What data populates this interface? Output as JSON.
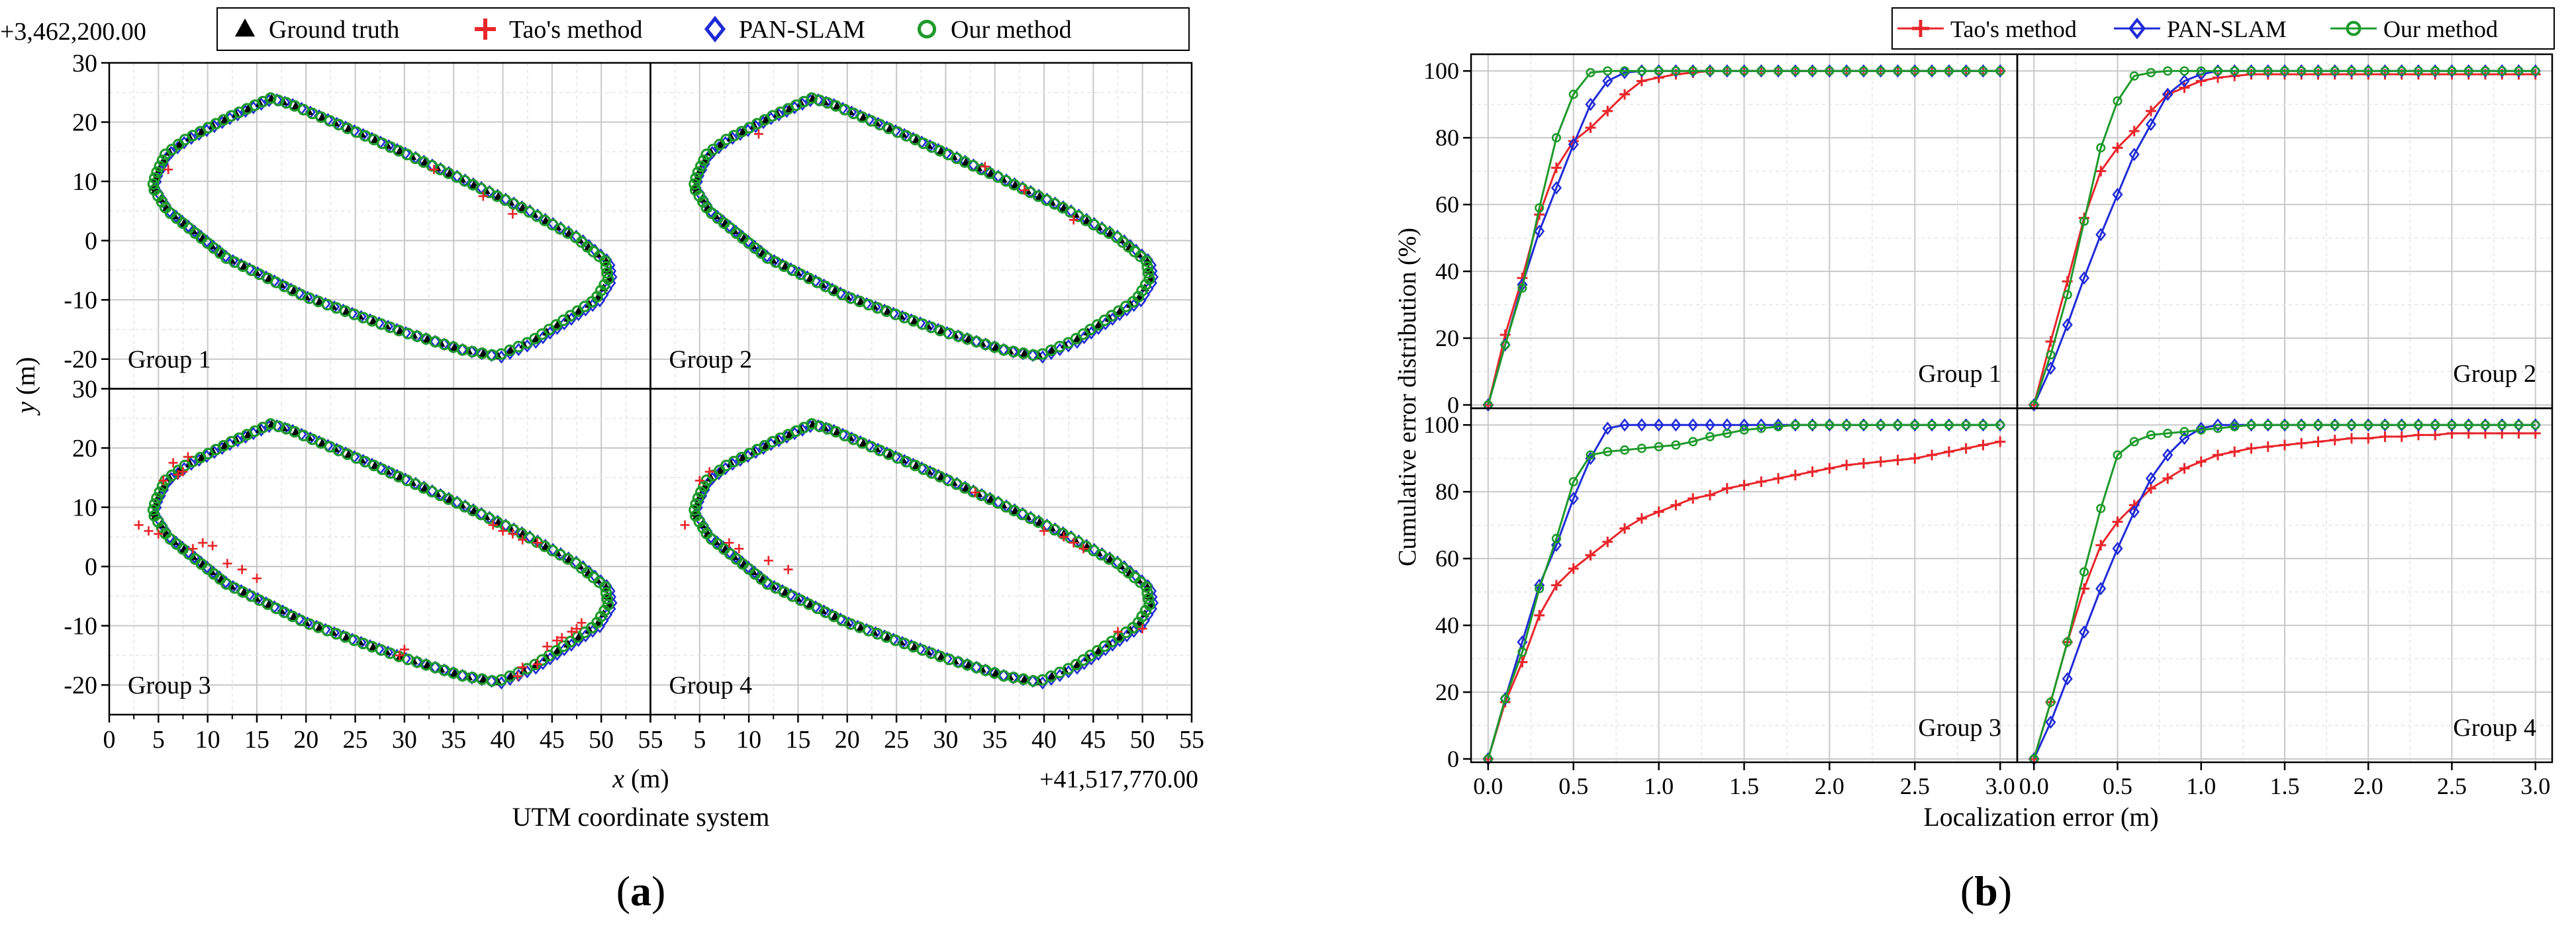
{
  "colors": {
    "ground_truth": "#000000",
    "tao": "#e8262b",
    "pan": "#1f2bd6",
    "ours": "#1e9a2b"
  },
  "panel_a": {
    "caption": "(a)",
    "y_offset_label": "+3,462,200.00",
    "x_offset_label": "+41,517,770.00",
    "xlabel_var": "x",
    "xlabel_unit": " (m)",
    "ylabel_var": "y",
    "ylabel_unit": " (m)",
    "subtitle": "UTM coordinate system",
    "legend": [
      {
        "name": "Ground truth",
        "marker": "triangle-filled",
        "color_key": "ground_truth"
      },
      {
        "name": "Tao's method",
        "marker": "plus",
        "color_key": "tao"
      },
      {
        "name": "PAN-SLAM",
        "marker": "diamond-open",
        "color_key": "pan"
      },
      {
        "name": "Our method",
        "marker": "circle-open",
        "color_key": "ours"
      }
    ]
  },
  "panel_b": {
    "caption": "(b)",
    "xlabel": "Localization error (m)",
    "ylabel": "Cumulative error distribution (%)",
    "legend": [
      {
        "name": "Tao's method",
        "marker": "plus",
        "color_key": "tao"
      },
      {
        "name": "PAN-SLAM",
        "marker": "diamond-open",
        "color_key": "pan"
      },
      {
        "name": "Our method",
        "marker": "circle-open",
        "color_key": "ours"
      }
    ]
  },
  "chart_data": [
    {
      "type": "scatter",
      "panel": "a",
      "layout": "2x2 small multiples",
      "xlim": [
        0,
        55
      ],
      "ylim": [
        -25,
        30
      ],
      "x_ticks": [
        0,
        5,
        10,
        15,
        20,
        25,
        30,
        35,
        40,
        45,
        50,
        55
      ],
      "y_ticks": [
        -20,
        -10,
        0,
        10,
        20,
        30
      ],
      "grid": true,
      "legend_position": "top",
      "trajectory_ground_truth": {
        "x": [
          4.5,
          4.8,
          5.8,
          7.8,
          12.5,
          16.5,
          18.5,
          27.0,
          35.0,
          42.0,
          47.5,
          50.5,
          50.8,
          49.5,
          43.0,
          39.5,
          36.0,
          30.0,
          20.0,
          12.0,
          6.0,
          4.5
        ],
        "y": [
          9.0,
          11.0,
          14.5,
          17.0,
          21.0,
          24.0,
          23.0,
          17.0,
          11.0,
          5.5,
          0.5,
          -3.5,
          -6.5,
          -10.0,
          -17.0,
          -19.5,
          -18.5,
          -15.5,
          -9.5,
          -3.0,
          5.0,
          9.0
        ]
      },
      "groups": [
        {
          "label": "Group 1",
          "tao_outliers": {
            "x": [
              6.0,
              33.0,
              38.0,
              41.0
            ],
            "y": [
              12.0,
              12.0,
              7.5,
              4.5
            ]
          }
        },
        {
          "label": "Group 2",
          "tao_outliers": {
            "x": [
              11.0,
              34.0,
              38.0,
              43.0
            ],
            "y": [
              18.0,
              12.5,
              8.5,
              3.5
            ]
          }
        },
        {
          "label": "Group 3",
          "tao_outliers": {
            "x": [
              3.0,
              4.0,
              5.0,
              5.5,
              7.0,
              8.0,
              8.5,
              9.5,
              10.5,
              12.0,
              13.5,
              15.0,
              6.5,
              7.5,
              29.5,
              30.0,
              39.0,
              40.0,
              41.0,
              42.0,
              43.5,
              42.0,
              43.5,
              44.5,
              45.5,
              46.0,
              47.0,
              47.5,
              48.0,
              41.5
            ],
            "y": [
              7.0,
              6.0,
              5.5,
              14.5,
              15.5,
              18.5,
              3.0,
              4.0,
              3.5,
              0.5,
              -0.5,
              -2.0,
              17.5,
              16.0,
              -15.0,
              -14.0,
              7.0,
              6.0,
              5.5,
              4.5,
              4.0,
              -17.0,
              -16.5,
              -13.5,
              -12.5,
              -12.0,
              -11.0,
              -10.5,
              -9.5,
              -18.5
            ]
          }
        },
        {
          "label": "Group 4",
          "tao_outliers": {
            "x": [
              3.5,
              5.0,
              6.0,
              8.0,
              9.0,
              12.0,
              14.0,
              33.0,
              40.0,
              42.0,
              43.0,
              44.0,
              47.5,
              50.0
            ],
            "y": [
              7.0,
              14.5,
              16.0,
              4.0,
              3.0,
              1.0,
              -0.5,
              12.5,
              6.0,
              5.0,
              4.0,
              3.0,
              -11.0,
              -10.5
            ]
          }
        }
      ]
    },
    {
      "type": "line",
      "panel": "b",
      "layout": "2x2 small multiples",
      "xlim": [
        0,
        3.0
      ],
      "ylim": [
        0,
        100
      ],
      "x_ticks": [
        0.0,
        0.5,
        1.0,
        1.5,
        2.0,
        2.5,
        3.0
      ],
      "y_ticks": [
        0,
        20,
        40,
        60,
        80,
        100
      ],
      "grid": true,
      "legend_position": "top-right",
      "x": [
        0.0,
        0.1,
        0.2,
        0.3,
        0.4,
        0.5,
        0.6,
        0.7,
        0.8,
        0.9,
        1.0,
        1.1,
        1.2,
        1.3,
        1.4,
        1.5,
        1.6,
        1.7,
        1.8,
        1.9,
        2.0,
        2.1,
        2.2,
        2.3,
        2.4,
        2.5,
        2.6,
        2.7,
        2.8,
        2.9,
        3.0
      ],
      "groups": [
        {
          "label": "Group 1",
          "series": [
            {
              "name": "Tao's method",
              "values": [
                0,
                21,
                38,
                57,
                71,
                79,
                83,
                88,
                93,
                97,
                98,
                99,
                99.5,
                100,
                100,
                100,
                100,
                100,
                100,
                100,
                100,
                100,
                100,
                100,
                100,
                100,
                100,
                100,
                100,
                100,
                100
              ]
            },
            {
              "name": "PAN-SLAM",
              "values": [
                0,
                18,
                36,
                52,
                65,
                78,
                90,
                97,
                99.5,
                100,
                100,
                100,
                100,
                100,
                100,
                100,
                100,
                100,
                100,
                100,
                100,
                100,
                100,
                100,
                100,
                100,
                100,
                100,
                100,
                100,
                100
              ]
            },
            {
              "name": "Our method",
              "values": [
                0,
                18,
                35,
                59,
                80,
                93,
                99.5,
                100,
                100,
                100,
                100,
                100,
                100,
                100,
                100,
                100,
                100,
                100,
                100,
                100,
                100,
                100,
                100,
                100,
                100,
                100,
                100,
                100,
                100,
                100,
                100
              ]
            }
          ]
        },
        {
          "label": "Group 2",
          "series": [
            {
              "name": "Tao's method",
              "values": [
                0,
                19,
                37,
                56,
                70,
                77,
                82,
                88,
                93,
                95,
                97,
                98,
                98.5,
                99,
                99,
                99,
                99,
                99,
                99,
                99,
                99,
                99,
                99,
                99,
                99,
                99,
                99,
                99,
                99,
                99,
                99
              ]
            },
            {
              "name": "PAN-SLAM",
              "values": [
                0,
                11,
                24,
                38,
                51,
                63,
                75,
                84,
                93,
                97,
                99,
                100,
                100,
                100,
                100,
                100,
                100,
                100,
                100,
                100,
                100,
                100,
                100,
                100,
                100,
                100,
                100,
                100,
                100,
                100,
                100
              ]
            },
            {
              "name": "Our method",
              "values": [
                0,
                15,
                33,
                55,
                77,
                91,
                98.5,
                99.5,
                100,
                100,
                100,
                100,
                100,
                100,
                100,
                100,
                100,
                100,
                100,
                100,
                100,
                100,
                100,
                100,
                100,
                100,
                100,
                100,
                100,
                100,
                100
              ]
            }
          ]
        },
        {
          "label": "Group 3",
          "series": [
            {
              "name": "Tao's method",
              "values": [
                0,
                17,
                29,
                43,
                52,
                57,
                61,
                65,
                69,
                72,
                74,
                76,
                78,
                79,
                81,
                82,
                83,
                84,
                85,
                86,
                87,
                88,
                88.5,
                89,
                89.5,
                90,
                91,
                92,
                93,
                94,
                95
              ]
            },
            {
              "name": "PAN-SLAM",
              "values": [
                0,
                18,
                35,
                52,
                64,
                78,
                90,
                99,
                100,
                100,
                100,
                100,
                100,
                100,
                100,
                100,
                100,
                100,
                100,
                100,
                100,
                100,
                100,
                100,
                100,
                100,
                100,
                100,
                100,
                100,
                100
              ]
            },
            {
              "name": "Our method",
              "values": [
                0,
                18,
                32,
                51,
                66,
                83,
                91,
                92,
                92.5,
                93,
                93.5,
                94,
                95,
                96.5,
                97.5,
                98.5,
                99,
                99.5,
                100,
                100,
                100,
                100,
                100,
                100,
                100,
                100,
                100,
                100,
                100,
                100,
                100
              ]
            }
          ]
        },
        {
          "label": "Group 4",
          "series": [
            {
              "name": "Tao's method",
              "values": [
                0,
                17,
                35,
                51,
                64,
                71,
                76,
                81,
                84,
                87,
                89,
                91,
                92,
                93,
                93.5,
                94,
                94.5,
                95,
                95.5,
                96,
                96,
                96.5,
                96.5,
                97,
                97,
                97.5,
                97.5,
                97.5,
                97.5,
                97.5,
                97.5
              ]
            },
            {
              "name": "PAN-SLAM",
              "values": [
                0,
                11,
                24,
                38,
                51,
                63,
                74,
                84,
                91,
                96,
                99,
                100,
                100,
                100,
                100,
                100,
                100,
                100,
                100,
                100,
                100,
                100,
                100,
                100,
                100,
                100,
                100,
                100,
                100,
                100,
                100
              ]
            },
            {
              "name": "Our method",
              "values": [
                0,
                17,
                35,
                56,
                75,
                91,
                95,
                97,
                97.5,
                98,
                98.5,
                99,
                99.5,
                100,
                100,
                100,
                100,
                100,
                100,
                100,
                100,
                100,
                100,
                100,
                100,
                100,
                100,
                100,
                100,
                100,
                100
              ]
            }
          ]
        }
      ]
    }
  ]
}
